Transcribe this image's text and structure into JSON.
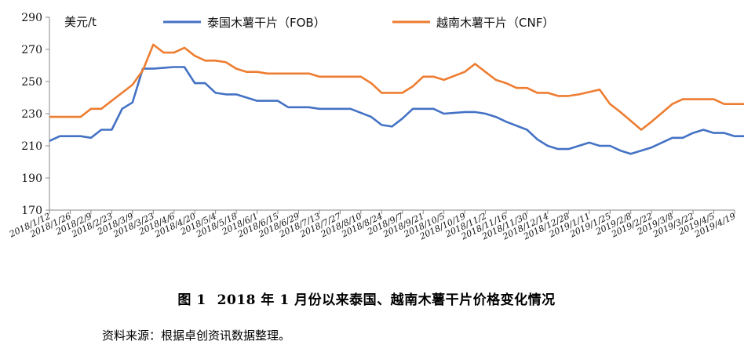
{
  "caption": {
    "number": "图 1",
    "title": "2018 年 1 月份以来泰国、越南木薯干片价格变化情况"
  },
  "source_note": "资料来源：根据卓创资讯数据整理。",
  "chart_data": {
    "type": "line",
    "title": "",
    "ylabel": "美元/t",
    "xlabel": "",
    "ylim": [
      170,
      290
    ],
    "yticks": [
      170,
      190,
      210,
      230,
      250,
      270,
      290
    ],
    "grid": false,
    "legend_position": "top",
    "x_tick_labels": [
      "2018/1/12",
      "2018/1/26",
      "2018/2/9",
      "2018/2/23",
      "2018/3/9",
      "2018/3/23",
      "2018/4/6",
      "2018/4/20",
      "2018/5/4",
      "2018/5/18",
      "2018/6/1",
      "2018/6/15",
      "2018/6/29",
      "2018/7/13",
      "2018/7/27",
      "2018/8/10",
      "2018/8/24",
      "2018/9/7",
      "2018/9/21",
      "2018/10/5",
      "2018/10/19",
      "2018/11/2",
      "2018/11/16",
      "2018/11/30",
      "2018/12/14",
      "2018/12/28",
      "2019/1/11",
      "2019/1/25",
      "2019/2/8",
      "2019/2/22",
      "2019/3/8",
      "2019/3/22",
      "2019/4/5",
      "2019/4/19"
    ],
    "x_start": "2018/1/12",
    "x_end": "2019/4/19",
    "series": [
      {
        "name": "泰国木薯干片（FOB）",
        "color": "#4472C4",
        "points": [
          [
            "2018/1/12",
            213
          ],
          [
            "2018/1/19",
            216
          ],
          [
            "2018/2/2",
            216
          ],
          [
            "2018/2/9",
            215
          ],
          [
            "2018/2/16",
            220
          ],
          [
            "2018/2/23",
            220
          ],
          [
            "2018/3/2",
            233
          ],
          [
            "2018/3/9",
            237
          ],
          [
            "2018/3/16",
            258
          ],
          [
            "2018/3/23",
            258
          ],
          [
            "2018/4/6",
            259
          ],
          [
            "2018/4/13",
            259
          ],
          [
            "2018/4/20",
            249
          ],
          [
            "2018/4/27",
            249
          ],
          [
            "2018/5/4",
            243
          ],
          [
            "2018/5/11",
            242
          ],
          [
            "2018/5/18",
            242
          ],
          [
            "2018/5/25",
            240
          ],
          [
            "2018/6/1",
            238
          ],
          [
            "2018/6/15",
            238
          ],
          [
            "2018/6/22",
            234
          ],
          [
            "2018/7/6",
            234
          ],
          [
            "2018/7/13",
            233
          ],
          [
            "2018/8/3",
            233
          ],
          [
            "2018/8/17",
            228
          ],
          [
            "2018/8/24",
            223
          ],
          [
            "2018/8/31",
            222
          ],
          [
            "2018/9/7",
            227
          ],
          [
            "2018/9/14",
            233
          ],
          [
            "2018/9/28",
            233
          ],
          [
            "2018/10/5",
            230
          ],
          [
            "2018/10/19",
            231
          ],
          [
            "2018/10/26",
            231
          ],
          [
            "2018/11/2",
            230
          ],
          [
            "2018/11/9",
            228
          ],
          [
            "2018/11/16",
            225
          ],
          [
            "2018/11/30",
            220
          ],
          [
            "2018/12/7",
            214
          ],
          [
            "2018/12/14",
            210
          ],
          [
            "2018/12/21",
            208
          ],
          [
            "2018/12/28",
            208
          ],
          [
            "2019/1/11",
            212
          ],
          [
            "2019/1/18",
            210
          ],
          [
            "2019/1/25",
            210
          ],
          [
            "2019/2/1",
            207
          ],
          [
            "2019/2/8",
            205
          ],
          [
            "2019/2/22",
            209
          ],
          [
            "2019/3/1",
            212
          ],
          [
            "2019/3/8",
            215
          ],
          [
            "2019/3/15",
            215
          ],
          [
            "2019/3/22",
            218
          ],
          [
            "2019/3/29",
            220
          ],
          [
            "2019/4/5",
            218
          ],
          [
            "2019/4/12",
            218
          ],
          [
            "2019/4/19",
            216
          ],
          [
            "2019/4/26",
            216
          ]
        ]
      },
      {
        "name": "越南木薯干片（CNF）",
        "color": "#ED7D31",
        "points": [
          [
            "2018/1/12",
            228
          ],
          [
            "2018/2/2",
            228
          ],
          [
            "2018/2/9",
            233
          ],
          [
            "2018/2/16",
            233
          ],
          [
            "2018/3/9",
            248
          ],
          [
            "2018/3/16",
            257
          ],
          [
            "2018/3/23",
            273
          ],
          [
            "2018/3/30",
            268
          ],
          [
            "2018/4/6",
            268
          ],
          [
            "2018/4/13",
            271
          ],
          [
            "2018/4/20",
            266
          ],
          [
            "2018/4/27",
            263
          ],
          [
            "2018/5/4",
            263
          ],
          [
            "2018/5/11",
            262
          ],
          [
            "2018/5/18",
            258
          ],
          [
            "2018/5/25",
            256
          ],
          [
            "2018/6/1",
            256
          ],
          [
            "2018/6/8",
            255
          ],
          [
            "2018/7/6",
            255
          ],
          [
            "2018/7/13",
            253
          ],
          [
            "2018/8/10",
            253
          ],
          [
            "2018/8/17",
            249
          ],
          [
            "2018/8/24",
            243
          ],
          [
            "2018/9/7",
            243
          ],
          [
            "2018/9/14",
            247
          ],
          [
            "2018/9/21",
            253
          ],
          [
            "2018/9/28",
            253
          ],
          [
            "2018/10/5",
            251
          ],
          [
            "2018/10/19",
            256
          ],
          [
            "2018/10/26",
            261
          ],
          [
            "2018/11/2",
            256
          ],
          [
            "2018/11/9",
            251
          ],
          [
            "2018/11/16",
            249
          ],
          [
            "2018/11/23",
            246
          ],
          [
            "2018/11/30",
            246
          ],
          [
            "2018/12/7",
            243
          ],
          [
            "2018/12/14",
            243
          ],
          [
            "2018/12/21",
            241
          ],
          [
            "2018/12/28",
            241
          ],
          [
            "2019/1/4",
            242
          ],
          [
            "2019/1/18",
            245
          ],
          [
            "2019/1/25",
            236
          ],
          [
            "2019/2/1",
            231
          ],
          [
            "2019/2/15",
            220
          ],
          [
            "2019/2/22",
            225
          ],
          [
            "2019/3/8",
            236
          ],
          [
            "2019/3/15",
            239
          ],
          [
            "2019/4/5",
            239
          ],
          [
            "2019/4/12",
            236
          ],
          [
            "2019/4/26",
            236
          ]
        ]
      }
    ]
  }
}
